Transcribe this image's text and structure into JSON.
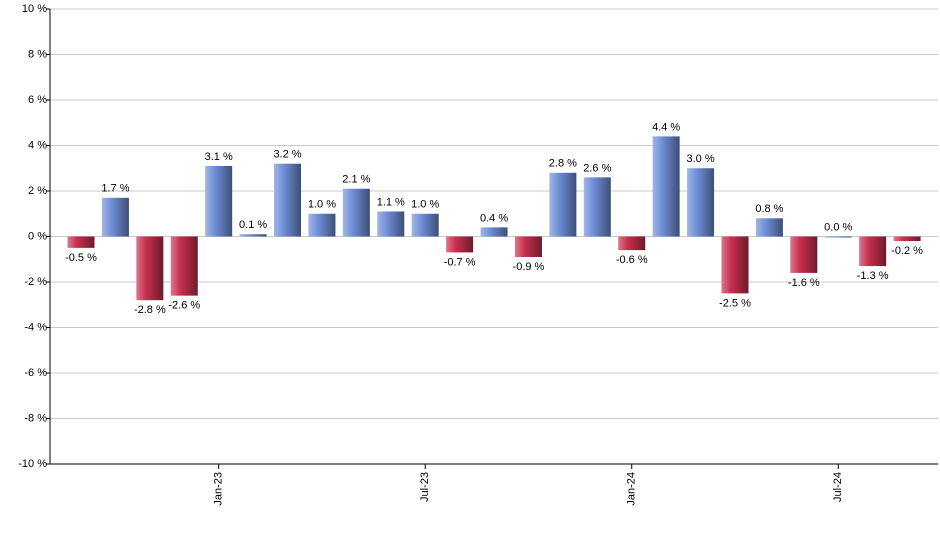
{
  "chart_data": {
    "type": "bar",
    "categories": [
      null,
      null,
      null,
      null,
      "Jan-23",
      null,
      null,
      null,
      null,
      null,
      "Jul-23",
      null,
      null,
      null,
      null,
      null,
      "Jan-24",
      null,
      null,
      null,
      null,
      null,
      "Jul-24",
      null,
      null
    ],
    "values": [
      -0.5,
      1.7,
      -2.8,
      -2.6,
      3.1,
      0.1,
      3.2,
      1.0,
      2.1,
      1.1,
      1.0,
      -0.7,
      0.4,
      -0.9,
      2.8,
      2.6,
      -0.6,
      4.4,
      3.0,
      -2.5,
      0.8,
      -1.6,
      0.0,
      -1.3,
      -0.2
    ],
    "value_labels": [
      "-0.5 %",
      "1.7 %",
      "-2.8 %",
      "-2.6 %",
      "3.1 %",
      "0.1 %",
      "3.2 %",
      "1.0 %",
      "2.1 %",
      "1.1 %",
      "1.0 %",
      "-0.7 %",
      "0.4 %",
      "-0.9 %",
      "2.8 %",
      "2.6 %",
      "-0.6 %",
      "4.4 %",
      "3.0 %",
      "-2.5 %",
      "0.8 %",
      "-1.6 %",
      "0.0 %",
      "-1.3 %",
      "-0.2 %"
    ],
    "color": "#6f8fd8",
    "negative_color": "#c8304f",
    "ylim": [
      -10,
      10
    ],
    "yticks": [
      {
        "value": -10,
        "label": "-10 %"
      },
      {
        "value": -8,
        "label": "-8 %"
      },
      {
        "value": -6,
        "label": "-6 %"
      },
      {
        "value": -4,
        "label": "-4 %"
      },
      {
        "value": -2,
        "label": "-2 %"
      },
      {
        "value": 0,
        "label": "0 %"
      },
      {
        "value": 2,
        "label": "2 %"
      },
      {
        "value": 4,
        "label": "4 %"
      },
      {
        "value": 6,
        "label": "6 %"
      },
      {
        "value": 8,
        "label": "8 %"
      },
      {
        "value": 10,
        "label": "10 %"
      }
    ],
    "grid": true
  }
}
